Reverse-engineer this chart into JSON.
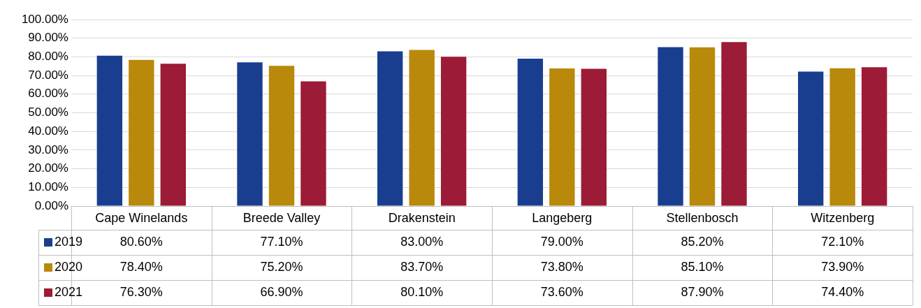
{
  "chart_data": {
    "type": "bar",
    "categories": [
      "Cape Winelands",
      "Breede Valley",
      "Drakenstein",
      "Langeberg",
      "Stellenbosch",
      "Witzenberg"
    ],
    "series": [
      {
        "name": "2019",
        "color": "#1a3e8f",
        "values": [
          80.6,
          77.1,
          83.0,
          79.0,
          85.2,
          72.1
        ],
        "value_labels": [
          "80.60%",
          "77.10%",
          "83.00%",
          "79.00%",
          "85.20%",
          "72.10%"
        ]
      },
      {
        "name": "2020",
        "color": "#b8890a",
        "values": [
          78.4,
          75.2,
          83.7,
          73.8,
          85.1,
          73.9
        ],
        "value_labels": [
          "78.40%",
          "75.20%",
          "83.70%",
          "73.80%",
          "85.10%",
          "73.90%"
        ]
      },
      {
        "name": "2021",
        "color": "#9c1b36",
        "values": [
          76.3,
          66.9,
          80.1,
          73.6,
          87.9,
          74.4
        ],
        "value_labels": [
          "76.30%",
          "66.90%",
          "80.10%",
          "73.60%",
          "87.90%",
          "74.40%"
        ]
      }
    ],
    "ylim": [
      0,
      100
    ],
    "yticks": [
      {
        "value": 0,
        "label": "0.00%"
      },
      {
        "value": 10,
        "label": "10.00%"
      },
      {
        "value": 20,
        "label": "20.00%"
      },
      {
        "value": 30,
        "label": "30.00%"
      },
      {
        "value": 40,
        "label": "40.00%"
      },
      {
        "value": 50,
        "label": "50.00%"
      },
      {
        "value": 60,
        "label": "60.00%"
      },
      {
        "value": 70,
        "label": "70.00%"
      },
      {
        "value": 80,
        "label": "80.00%"
      },
      {
        "value": 90,
        "label": "90.00%"
      },
      {
        "value": 100,
        "label": "100.00%"
      }
    ],
    "grid": "y",
    "legend": "bottom left"
  }
}
